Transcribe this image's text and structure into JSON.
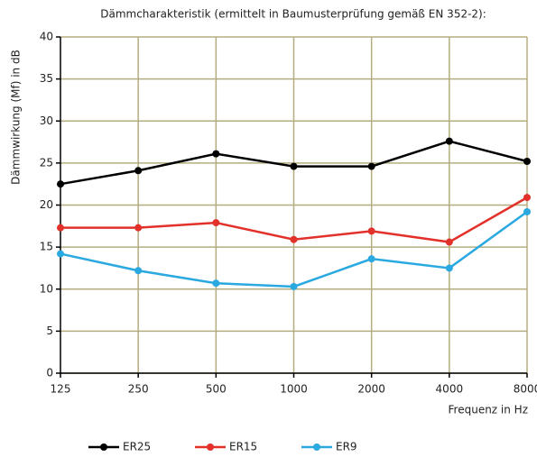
{
  "chart_data": {
    "type": "line",
    "title": "Dämmcharakteristik (ermittelt in Baumusterprüfung gemäß EN 352-2):",
    "y_label": "Dämmwirkung (Mf) in dB",
    "x_label": "Frequenz in Hz",
    "categories": [
      "125",
      "250",
      "500",
      "1000",
      "2000",
      "4000",
      "8000"
    ],
    "series": [
      {
        "name": "ER25",
        "color": "#000000",
        "values": [
          22.5,
          24.1,
          26.1,
          24.6,
          24.6,
          27.6,
          25.2
        ]
      },
      {
        "name": "ER15",
        "color": "#e2312a",
        "values": [
          17.3,
          17.3,
          17.9,
          15.9,
          16.9,
          15.6,
          20.9
        ]
      },
      {
        "name": "ER9",
        "color": "#2aa8e0",
        "values": [
          14.2,
          12.2,
          10.7,
          10.3,
          13.6,
          12.5,
          19.2
        ]
      }
    ],
    "ylim": [
      0,
      40
    ],
    "yticks": [
      0,
      5,
      10,
      15,
      20,
      25,
      30,
      35,
      40
    ],
    "grid": true,
    "grid_color": "#b5ad7f",
    "legend": "bottom"
  }
}
